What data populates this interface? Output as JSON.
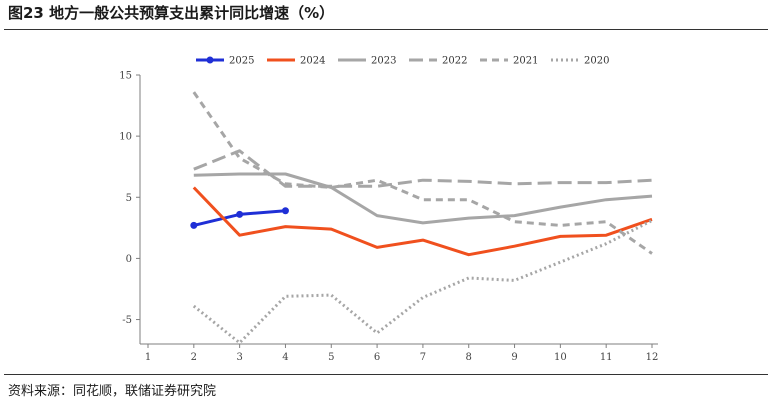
{
  "header": {
    "title": "图23 地方一般公共预算支出累计同比增速（%）"
  },
  "footer": {
    "source": "资料来源：同花顺，联储证券研究院"
  },
  "chart_data": {
    "type": "line",
    "x": [
      1,
      2,
      3,
      4,
      5,
      6,
      7,
      8,
      9,
      10,
      11,
      12
    ],
    "xlim": [
      1,
      12
    ],
    "ylim": [
      -7,
      15
    ],
    "yticks": [
      -5,
      0,
      5,
      10,
      15
    ],
    "xticks": [
      1,
      2,
      3,
      4,
      5,
      6,
      7,
      8,
      9,
      10,
      11,
      12
    ],
    "xtick_labels": [
      "1",
      "2",
      "3",
      "4",
      "5",
      "6",
      "7",
      "8",
      "9",
      "10",
      "11",
      "12"
    ],
    "ytick_labels": [
      "-5",
      "0",
      "5",
      "10",
      "15"
    ],
    "grid": false,
    "legend_position": "top",
    "series": [
      {
        "name": "2025",
        "color": "#1f2fd6",
        "style": "solid-markers",
        "x": [
          2,
          3,
          4
        ],
        "values": [
          2.7,
          3.6,
          3.9
        ]
      },
      {
        "name": "2024",
        "color": "#f0501e",
        "style": "solid",
        "x": [
          2,
          3,
          4,
          5,
          6,
          7,
          8,
          9,
          10,
          11,
          12
        ],
        "values": [
          5.8,
          1.9,
          2.6,
          2.4,
          0.9,
          1.5,
          0.3,
          1.0,
          1.8,
          1.9,
          3.2
        ]
      },
      {
        "name": "2023",
        "color": "#a6a6a6",
        "style": "solid",
        "x": [
          2,
          3,
          4,
          5,
          6,
          7,
          8,
          9,
          10,
          11,
          12
        ],
        "values": [
          6.8,
          6.9,
          6.9,
          5.8,
          3.5,
          2.9,
          3.3,
          3.5,
          4.2,
          4.8,
          5.1
        ]
      },
      {
        "name": "2022",
        "color": "#a6a6a6",
        "style": "long-dash",
        "x": [
          2,
          3,
          4,
          5,
          6,
          7,
          8,
          9,
          10,
          11,
          12
        ],
        "values": [
          7.3,
          8.8,
          5.9,
          5.9,
          5.9,
          6.4,
          6.3,
          6.1,
          6.2,
          6.2,
          6.4
        ]
      },
      {
        "name": "2021",
        "color": "#a6a6a6",
        "style": "short-dash",
        "x": [
          2,
          3,
          4,
          5,
          6,
          7,
          8,
          9,
          10,
          11,
          12
        ],
        "values": [
          13.6,
          8.2,
          6.1,
          5.8,
          6.4,
          4.8,
          4.8,
          3.0,
          2.7,
          3.0,
          0.4
        ]
      },
      {
        "name": "2020",
        "color": "#a6a6a6",
        "style": "dotted",
        "x": [
          2,
          3,
          4,
          5,
          6,
          7,
          8,
          9,
          10,
          11,
          12
        ],
        "values": [
          -3.9,
          -6.9,
          -3.1,
          -3.0,
          -6.1,
          -3.2,
          -1.6,
          -1.8,
          -0.3,
          1.2,
          3.1
        ]
      }
    ]
  }
}
